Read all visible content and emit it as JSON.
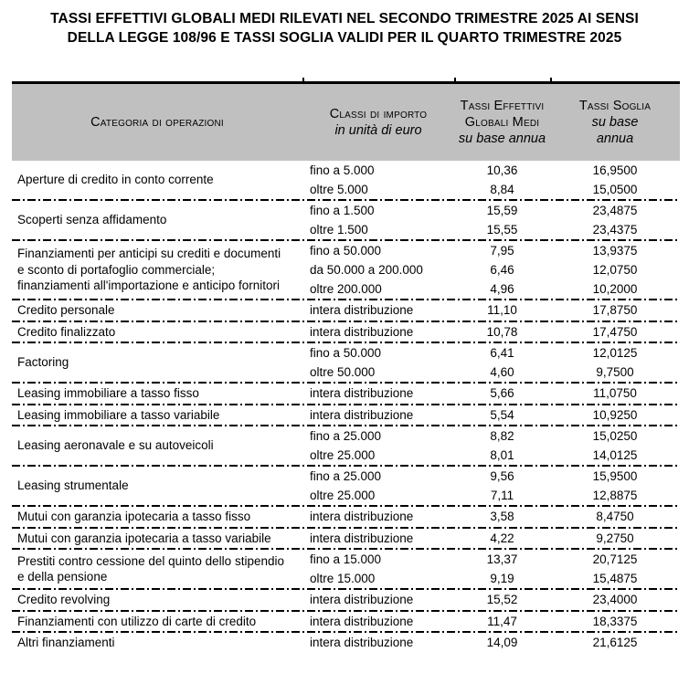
{
  "title": {
    "line1": "TASSI EFFETTIVI GLOBALI MEDI RILEVATI NEL SECONDO TRIMESTRE 2025 AI SENSI",
    "line2": "DELLA LEGGE 108/96 E TASSI SOGLIA VALIDI PER IL QUARTO TRIMESTRE 2025"
  },
  "colors": {
    "header_bg": "#c0c0c0",
    "border": "#000000",
    "text": "#000000"
  },
  "table": {
    "header": {
      "col1": "Categoria di operazioni",
      "col2_title": "Classi di importo",
      "col2_sub": "in unità di euro",
      "col3_title": "Tassi Effettivi Globali Medi",
      "col3_sub": "su base annua",
      "col4_title": "Tassi Soglia",
      "col4_sub": "su base annua"
    },
    "rows": [
      {
        "category": "Aperture di credito in conto corrente",
        "justify": false,
        "subrows": [
          {
            "classe": "fino a 5.000",
            "tegm": "10,36",
            "soglia": "16,9500"
          },
          {
            "classe": "oltre 5.000",
            "tegm": "8,84",
            "soglia": "15,0500"
          }
        ]
      },
      {
        "category": "Scoperti senza affidamento",
        "justify": false,
        "subrows": [
          {
            "classe": "fino a 1.500",
            "tegm": "15,59",
            "soglia": "23,4875"
          },
          {
            "classe": "oltre 1.500",
            "tegm": "15,55",
            "soglia": "23,4375"
          }
        ]
      },
      {
        "category": "Finanziamenti per anticipi su crediti e documenti e sconto di portafoglio commerciale; finanziamenti all'importazione e anticipo fornitori",
        "justify": false,
        "subrows": [
          {
            "classe": "fino a 50.000",
            "tegm": "7,95",
            "soglia": "13,9375"
          },
          {
            "classe": "da 50.000 a 200.000",
            "tegm": "6,46",
            "soglia": "12,0750"
          },
          {
            "classe": "oltre 200.000",
            "tegm": "4,96",
            "soglia": "10,2000"
          }
        ]
      },
      {
        "category": "Credito personale",
        "justify": false,
        "subrows": [
          {
            "classe": "intera distribuzione",
            "tegm": "11,10",
            "soglia": "17,8750"
          }
        ]
      },
      {
        "category": "Credito finalizzato",
        "justify": false,
        "subrows": [
          {
            "classe": "intera distribuzione",
            "tegm": "10,78",
            "soglia": "17,4750"
          }
        ]
      },
      {
        "category": "Factoring",
        "justify": false,
        "subrows": [
          {
            "classe": "fino a 50.000",
            "tegm": "6,41",
            "soglia": "12,0125"
          },
          {
            "classe": "oltre 50.000",
            "tegm": "4,60",
            "soglia": "9,7500"
          }
        ]
      },
      {
        "category": "Leasing immobiliare a tasso fisso",
        "justify": false,
        "subrows": [
          {
            "classe": "intera distribuzione",
            "tegm": "5,66",
            "soglia": "11,0750"
          }
        ]
      },
      {
        "category": "Leasing immobiliare a tasso variabile",
        "justify": false,
        "subrows": [
          {
            "classe": "intera distribuzione",
            "tegm": "5,54",
            "soglia": "10,9250"
          }
        ]
      },
      {
        "category": "Leasing aeronavale e su autoveicoli",
        "justify": false,
        "subrows": [
          {
            "classe": "fino a 25.000",
            "tegm": "8,82",
            "soglia": "15,0250"
          },
          {
            "classe": "oltre 25.000",
            "tegm": "8,01",
            "soglia": "14,0125"
          }
        ]
      },
      {
        "category": "Leasing strumentale",
        "justify": false,
        "subrows": [
          {
            "classe": "fino a 25.000",
            "tegm": "9,56",
            "soglia": "15,9500"
          },
          {
            "classe": "oltre 25.000",
            "tegm": "7,11",
            "soglia": "12,8875"
          }
        ]
      },
      {
        "category": "Mutui con garanzia ipotecaria a tasso fisso",
        "justify": false,
        "subrows": [
          {
            "classe": "intera distribuzione",
            "tegm": "3,58",
            "soglia": "8,4750"
          }
        ]
      },
      {
        "category": "Mutui con garanzia ipotecaria a tasso variabile",
        "justify": false,
        "subrows": [
          {
            "classe": "intera distribuzione",
            "tegm": "4,22",
            "soglia": "9,2750"
          }
        ]
      },
      {
        "category": "Prestiti contro cessione del quinto dello stipendio e della pensione",
        "justify": true,
        "subrows": [
          {
            "classe": "fino a 15.000",
            "tegm": "13,37",
            "soglia": "20,7125"
          },
          {
            "classe": "oltre 15.000",
            "tegm": "9,19",
            "soglia": "15,4875"
          }
        ]
      },
      {
        "category": "Credito revolving",
        "justify": false,
        "subrows": [
          {
            "classe": "intera distribuzione",
            "tegm": "15,52",
            "soglia": "23,4000"
          }
        ]
      },
      {
        "category": "Finanziamenti con utilizzo di carte di credito",
        "justify": false,
        "subrows": [
          {
            "classe": "intera distribuzione",
            "tegm": "11,47",
            "soglia": "18,3375"
          }
        ]
      },
      {
        "category": "Altri finanziamenti",
        "justify": false,
        "subrows": [
          {
            "classe": "intera distribuzione",
            "tegm": "14,09",
            "soglia": "21,6125"
          }
        ]
      }
    ]
  }
}
